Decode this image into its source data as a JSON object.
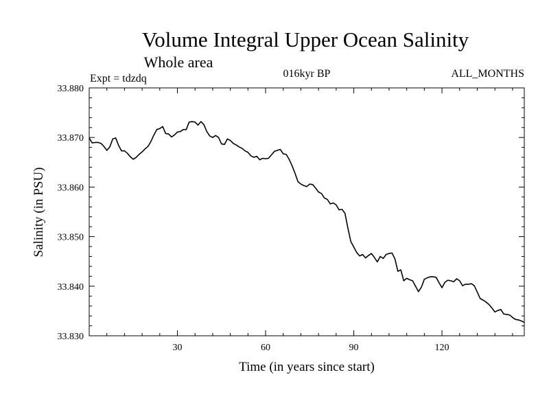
{
  "chart_data": {
    "type": "line",
    "title": "Volume Integral Upper Ocean Salinity",
    "subtitle": "Whole area",
    "expt_label": "Expt = tdzdq",
    "period_label": "016kyr BP",
    "months_label": "ALL_MONTHS",
    "xlabel": "Time (in years since start)",
    "ylabel": "Salinity (in PSU)",
    "xlim": [
      0,
      148
    ],
    "ylim": [
      33.83,
      33.88
    ],
    "x_major_ticks": [
      30,
      60,
      90,
      120
    ],
    "x_tick_labels": [
      "30",
      "60",
      "90",
      "120"
    ],
    "y_major_ticks": [
      33.83,
      33.84,
      33.85,
      33.86,
      33.87,
      33.88
    ],
    "y_tick_labels": [
      "33.830",
      "33.840",
      "33.850",
      "33.860",
      "33.870",
      "33.880"
    ],
    "x_minor_step": 6,
    "y_minor_step": 0.002,
    "grid": false,
    "series": [
      {
        "name": "Salinity",
        "color": "#000000",
        "x": [
          0,
          1,
          2,
          3,
          4,
          5,
          6,
          7,
          8,
          9,
          10,
          11,
          12,
          13,
          14,
          15,
          16,
          17,
          18,
          19,
          20,
          21,
          22,
          23,
          24,
          25,
          26,
          27,
          28,
          29,
          30,
          31,
          32,
          33,
          34,
          35,
          36,
          37,
          38,
          39,
          40,
          41,
          42,
          43,
          44,
          45,
          46,
          47,
          48,
          49,
          50,
          51,
          52,
          53,
          54,
          55,
          56,
          57,
          58,
          59,
          60,
          61,
          62,
          63,
          64,
          65,
          66,
          67,
          68,
          69,
          70,
          71,
          72,
          73,
          74,
          75,
          76,
          77,
          78,
          79,
          80,
          81,
          82,
          83,
          84,
          85,
          86,
          87,
          88,
          89,
          90,
          91,
          92,
          93,
          94,
          95,
          96,
          97,
          98,
          99,
          100,
          101,
          102,
          103,
          104,
          105,
          106,
          107,
          108,
          109,
          110,
          111,
          112,
          113,
          114,
          115,
          116,
          117,
          118,
          119,
          120,
          121,
          122,
          123,
          124,
          125,
          126,
          127,
          128,
          129,
          130,
          131,
          132,
          133,
          134,
          135,
          136,
          137,
          138,
          139,
          140,
          141,
          142,
          143,
          144,
          145,
          146,
          147,
          148
        ],
        "values": [
          33.8699,
          33.8689,
          33.869,
          33.869,
          33.8688,
          33.8682,
          33.8674,
          33.8681,
          33.8697,
          33.8699,
          33.8684,
          33.8673,
          33.8673,
          33.8668,
          33.8661,
          33.8656,
          33.866,
          33.8666,
          33.8671,
          33.8677,
          33.8682,
          33.8692,
          33.8705,
          33.8716,
          33.8718,
          33.8722,
          33.8708,
          33.8707,
          33.8701,
          33.8705,
          33.8711,
          33.8712,
          33.8716,
          33.8716,
          33.8731,
          33.8732,
          33.8731,
          33.8725,
          33.8732,
          33.8726,
          33.8712,
          33.8703,
          33.87,
          33.8704,
          33.87,
          33.8687,
          33.8686,
          33.8697,
          33.8694,
          33.8688,
          33.8685,
          33.8681,
          33.8678,
          33.8673,
          33.867,
          33.8663,
          33.866,
          33.8662,
          33.8655,
          33.8658,
          33.8657,
          33.8658,
          33.8665,
          33.8672,
          33.8674,
          33.8676,
          33.8667,
          33.8666,
          33.8656,
          33.8643,
          33.8628,
          33.8611,
          33.8606,
          33.8603,
          33.8601,
          33.8606,
          33.8605,
          33.8598,
          33.859,
          33.8587,
          33.8578,
          33.8575,
          33.8566,
          33.8568,
          33.8564,
          33.8554,
          33.8555,
          33.8547,
          33.8517,
          33.849,
          33.8479,
          33.8468,
          33.8461,
          33.8464,
          33.8457,
          33.8462,
          33.8466,
          33.8458,
          33.8449,
          33.846,
          33.8456,
          33.8464,
          33.8466,
          33.8467,
          33.8455,
          33.843,
          33.8433,
          33.8411,
          33.8416,
          33.8413,
          33.8411,
          33.84,
          33.8389,
          33.8398,
          33.8414,
          33.8417,
          33.8419,
          33.8419,
          33.8418,
          33.8407,
          33.8397,
          33.8408,
          33.8412,
          33.8411,
          33.8409,
          33.8415,
          33.8411,
          33.8401,
          33.8404,
          33.8404,
          33.8405,
          33.8401,
          33.8388,
          33.8375,
          33.8372,
          33.8368,
          33.8363,
          33.8356,
          33.8348,
          33.8351,
          33.8353,
          33.8344,
          33.8343,
          33.8342,
          33.8337,
          33.8333,
          33.8332,
          33.833,
          33.8327
        ]
      }
    ]
  }
}
